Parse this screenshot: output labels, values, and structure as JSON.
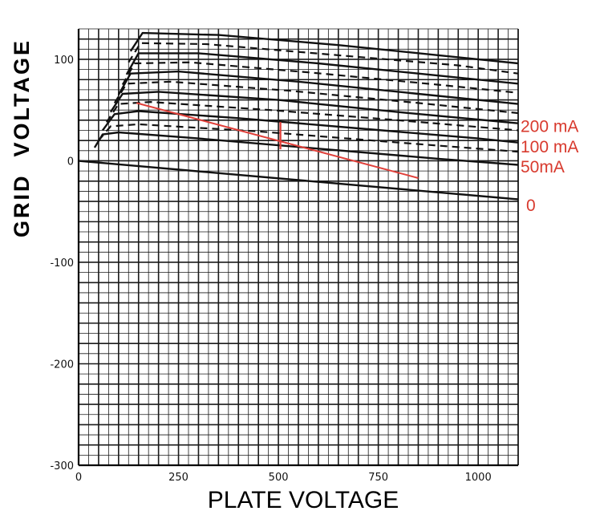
{
  "chart_data": {
    "type": "line",
    "title": "",
    "xlabel": "PLATE VOLTAGE",
    "ylabel": "GRID  VOLTAGE",
    "xlim": [
      0,
      1100
    ],
    "ylim": [
      -300,
      130
    ],
    "x_ticks": [
      0,
      250,
      500,
      750,
      1000
    ],
    "x_tick_labels": [
      "0",
      "250",
      "500",
      "750",
      "1000"
    ],
    "y_ticks": [
      -300,
      -200,
      -100,
      0,
      100
    ],
    "y_tick_labels": [
      "-300",
      "-200",
      "-100",
      "0",
      "100"
    ],
    "grid": true,
    "colors": {
      "curve": "#111111",
      "load_line": "#e0403a",
      "label": "#d83a2e",
      "grid": "#1a1a1a"
    },
    "solid_series": [
      {
        "x": [
          0,
          1100
        ],
        "y": [
          0,
          -38
        ]
      },
      {
        "x": [
          40,
          60,
          100,
          300,
          600,
          900,
          1100
        ],
        "y": [
          13,
          26,
          28,
          22,
          12,
          2,
          -4
        ]
      },
      {
        "x": [
          60,
          90,
          150,
          400,
          700,
          1000,
          1100
        ],
        "y": [
          30,
          46,
          49,
          42,
          32,
          22,
          18
        ]
      },
      {
        "x": [
          80,
          110,
          200,
          500,
          800,
          1100
        ],
        "y": [
          48,
          66,
          68,
          60,
          48,
          37
        ]
      },
      {
        "x": [
          100,
          130,
          250,
          550,
          850,
          1100
        ],
        "y": [
          65,
          86,
          88,
          78,
          66,
          56
        ]
      },
      {
        "x": [
          120,
          150,
          300,
          600,
          900,
          1100
        ],
        "y": [
          85,
          106,
          106,
          96,
          84,
          76
        ]
      },
      {
        "x": [
          130,
          160,
          350,
          650,
          950,
          1100
        ],
        "y": [
          108,
          126,
          124,
          114,
          102,
          96
        ]
      }
    ],
    "dashed_series": [
      {
        "x": [
          50,
          80,
          150,
          450,
          800,
          1100
        ],
        "y": [
          20,
          34,
          36,
          29,
          18,
          9
        ]
      },
      {
        "x": [
          70,
          100,
          180,
          480,
          800,
          1100
        ],
        "y": [
          38,
          56,
          58,
          50,
          40,
          30
        ]
      },
      {
        "x": [
          90,
          120,
          230,
          530,
          850,
          1100
        ],
        "y": [
          57,
          76,
          78,
          69,
          57,
          47
        ]
      },
      {
        "x": [
          110,
          140,
          280,
          580,
          900,
          1100
        ],
        "y": [
          75,
          96,
          97,
          87,
          75,
          67
        ]
      },
      {
        "x": [
          125,
          155,
          320,
          620,
          950,
          1100
        ],
        "y": [
          97,
          116,
          115,
          105,
          94,
          86
        ]
      }
    ],
    "load_line": {
      "x": [
        145,
        850
      ],
      "y": [
        57,
        -17
      ]
    },
    "load_line_marker": {
      "x": 505,
      "y": 24
    },
    "curve_labels": [
      {
        "text": "200 mA",
        "y": 34
      },
      {
        "text": "100 mA",
        "y": 14
      },
      {
        "text": "50mA",
        "y": -6
      },
      {
        "text": "0",
        "y": -44
      }
    ]
  }
}
